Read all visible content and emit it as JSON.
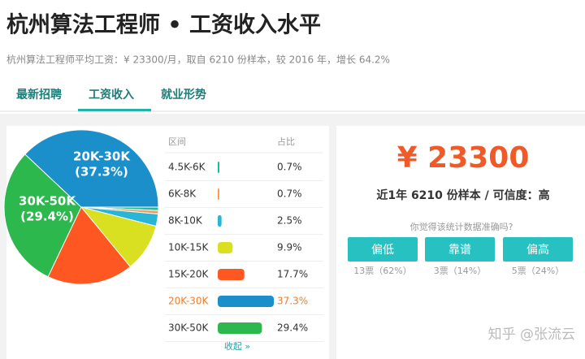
{
  "header": {
    "title": "杭州算法工程师 • 工资收入水平",
    "subtitle": "杭州算法工程师平均工资：¥ 23300/月，取自 6210 份样本，较 2016 年，增长 64.2%"
  },
  "tabs": [
    "最新招聘",
    "工资收入",
    "就业形势"
  ],
  "distribution": {
    "type": "bar",
    "header": [
      "区间",
      "占比"
    ],
    "rows": [
      {
        "range": "4.5K-6K",
        "value": 0.7,
        "value_label": "0.7%",
        "color": "#1abc9c",
        "text_color": "#333333"
      },
      {
        "range": "6K-8K",
        "value": 0.7,
        "value_label": "0.7%",
        "color": "#f39c5a",
        "text_color": "#333333"
      },
      {
        "range": "8K-10K",
        "value": 2.5,
        "value_label": "2.5%",
        "color": "#29b6d6",
        "text_color": "#333333"
      },
      {
        "range": "10K-15K",
        "value": 9.9,
        "value_label": "9.9%",
        "color": "#d9e021",
        "text_color": "#333333"
      },
      {
        "range": "15K-20K",
        "value": 17.7,
        "value_label": "17.7%",
        "color": "#ff5722",
        "text_color": "#333333"
      },
      {
        "range": "20K-30K",
        "value": 37.3,
        "value_label": "37.3%",
        "color": "#1a8fc9",
        "text_color": "#f07c2b"
      },
      {
        "range": "30K-50K",
        "value": 29.4,
        "value_label": "29.4%",
        "color": "#2db84d",
        "text_color": "#333333"
      }
    ],
    "collapse": "收起 »"
  },
  "pie": {
    "type": "pie",
    "values": [
      0.7,
      0.7,
      2.5,
      9.9,
      17.7,
      29.4,
      37.3
    ],
    "colors": [
      "#1abc9c",
      "#f39c5a",
      "#29b6d6",
      "#d9e021",
      "#ff5722",
      "#2db84d",
      "#1a8fc9"
    ],
    "labels": [
      {
        "name": "30K-50K",
        "label": "(29.4%)"
      },
      {
        "name": "20K-30K",
        "label": "(37.3%)"
      }
    ]
  },
  "summary": {
    "salary": "¥ 23300",
    "detail": "近1年 6210 份样本 / 可信度：高",
    "question": "你觉得该统计数据准确吗?",
    "buttons": [
      {
        "label": "偏低",
        "votes": "13票（62%）"
      },
      {
        "label": "靠谱",
        "votes": "3票（14%）"
      },
      {
        "label": "偏高",
        "votes": "5票（24%）"
      }
    ]
  },
  "watermark": "知乎 @张流云"
}
